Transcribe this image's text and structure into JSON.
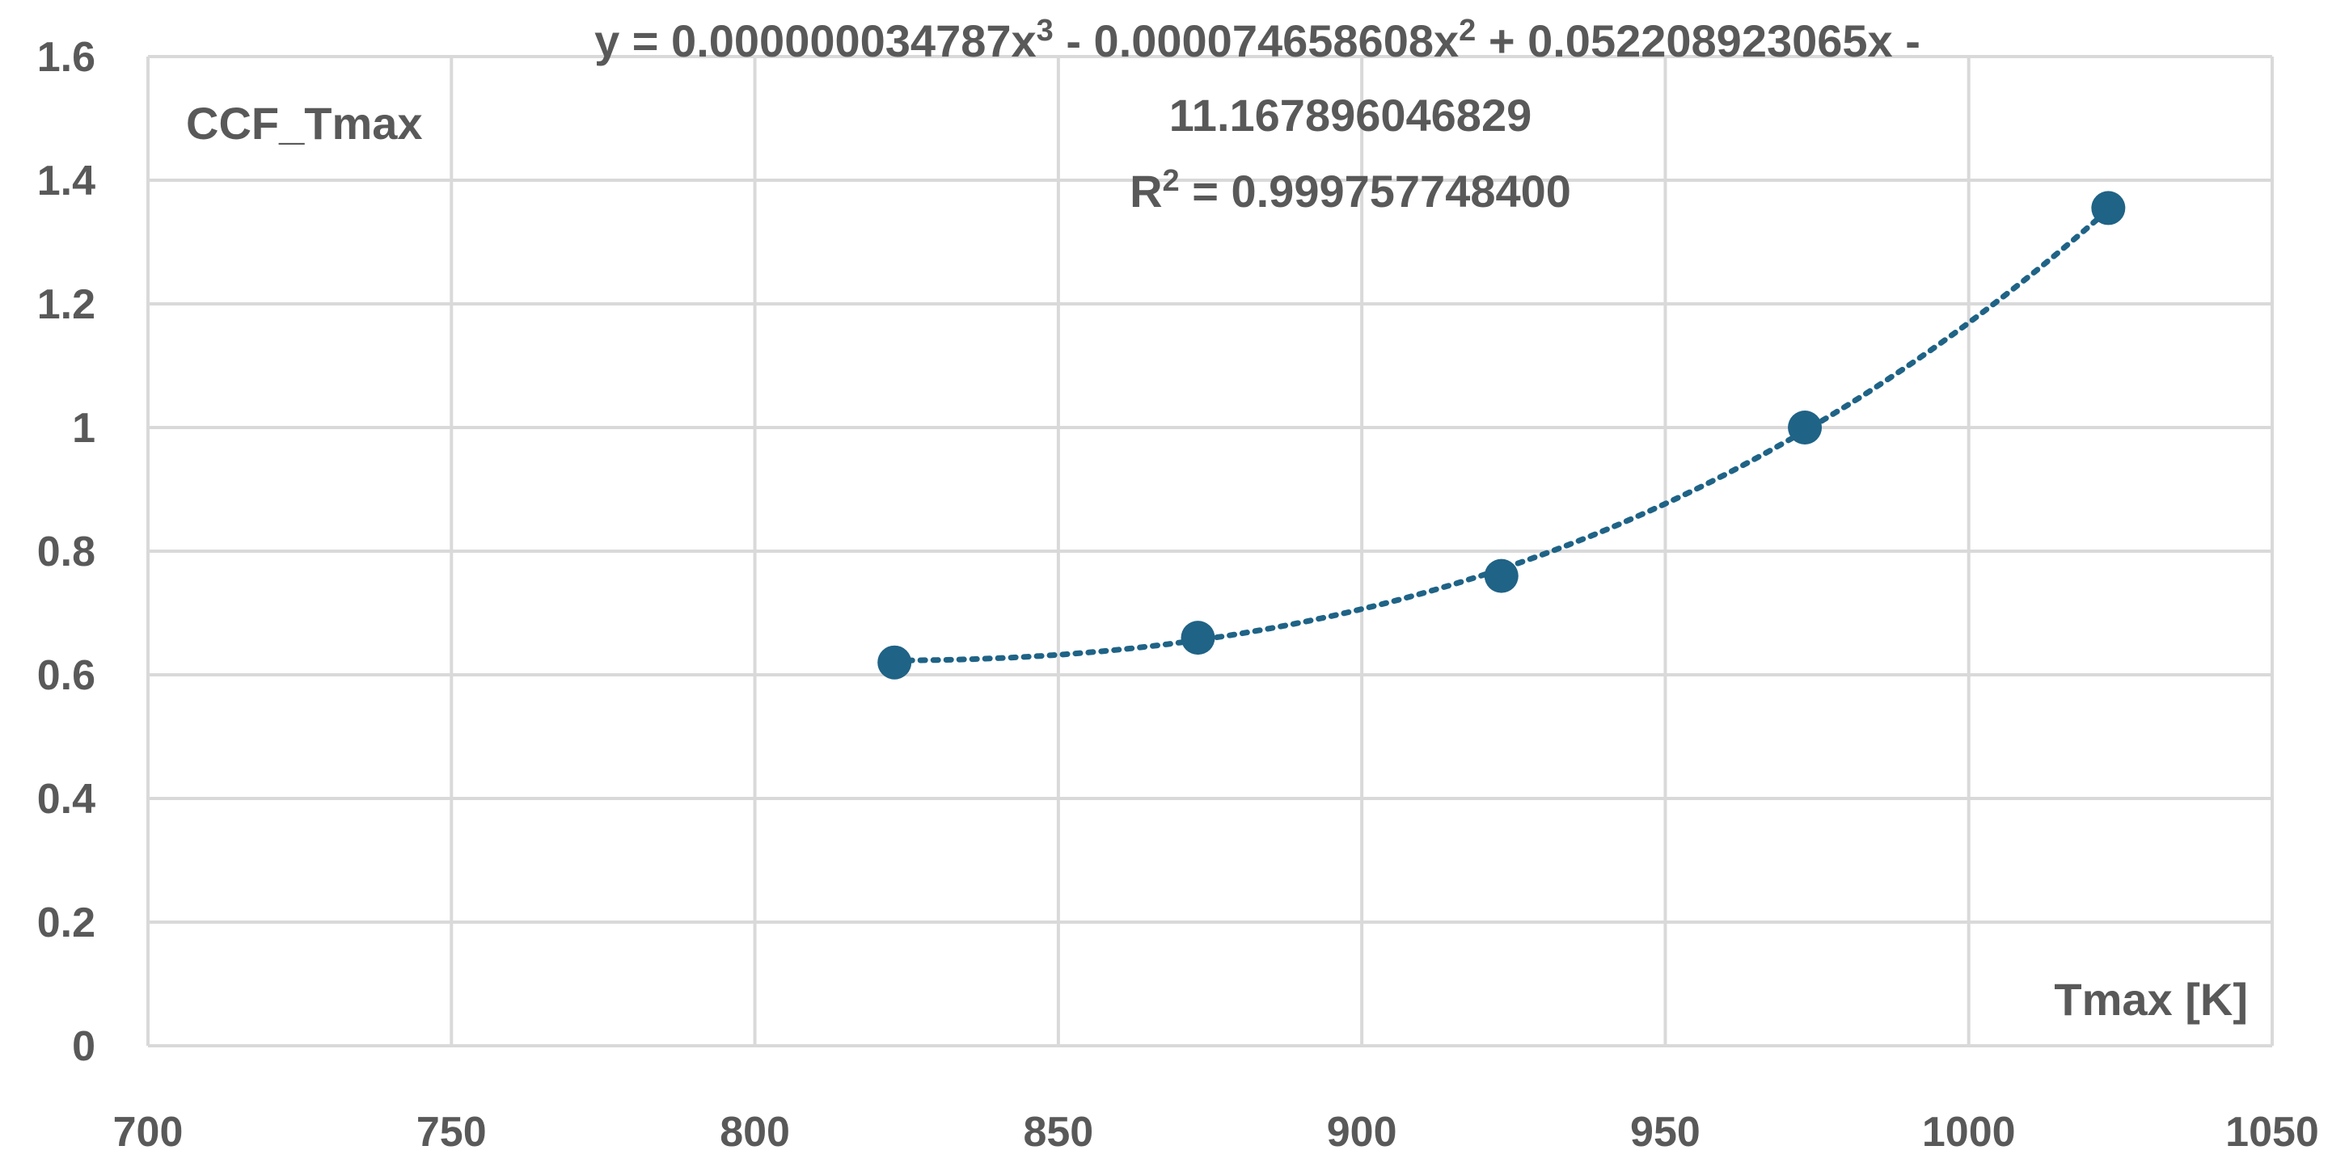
{
  "chart_data": {
    "type": "scatter",
    "series": [
      {
        "x": [
          823,
          873,
          923,
          973,
          1023
        ],
        "y": [
          0.62,
          0.66,
          0.76,
          1.0,
          1.355
        ],
        "color": "#1f6386",
        "trendline": {
          "type": "polynomial",
          "order": 3,
          "coefficients": [
            3.4787e-08,
            -7.4658608e-05,
            0.052208923065,
            -11.167896046829
          ],
          "style": "dotted",
          "color": "#1f6386"
        }
      }
    ],
    "xlim": [
      700,
      1050
    ],
    "ylim": [
      0,
      1.6
    ],
    "x_ticks": [
      700,
      750,
      800,
      850,
      900,
      950,
      1000,
      1050
    ],
    "y_ticks": [
      0,
      0.2,
      0.4,
      0.6,
      0.8,
      1,
      1.2,
      1.4,
      1.6
    ],
    "x_tick_labels": [
      "700",
      "750",
      "800",
      "850",
      "900",
      "950",
      "1000",
      "1050"
    ],
    "y_tick_labels": [
      "0",
      "0.2",
      "0.4",
      "0.6",
      "0.8",
      "1",
      "1.2",
      "1.4",
      "1.6"
    ],
    "xlabel": "Tmax [K]",
    "ylabel": "CCF_Tmax",
    "equation": {
      "line1_a": "y = 0.000000034787x",
      "line1_sup1": "3",
      "line1_b": " - 0.000074658608x",
      "line1_sup2": "2",
      "line1_c": " + 0.052208923065x -",
      "line2": "11.167896046829",
      "r2_prefix": "R",
      "r2_sup": "2",
      "r2_value": " = 0.999757748400"
    },
    "grid": true,
    "gridColor": "#d9d9d9"
  }
}
